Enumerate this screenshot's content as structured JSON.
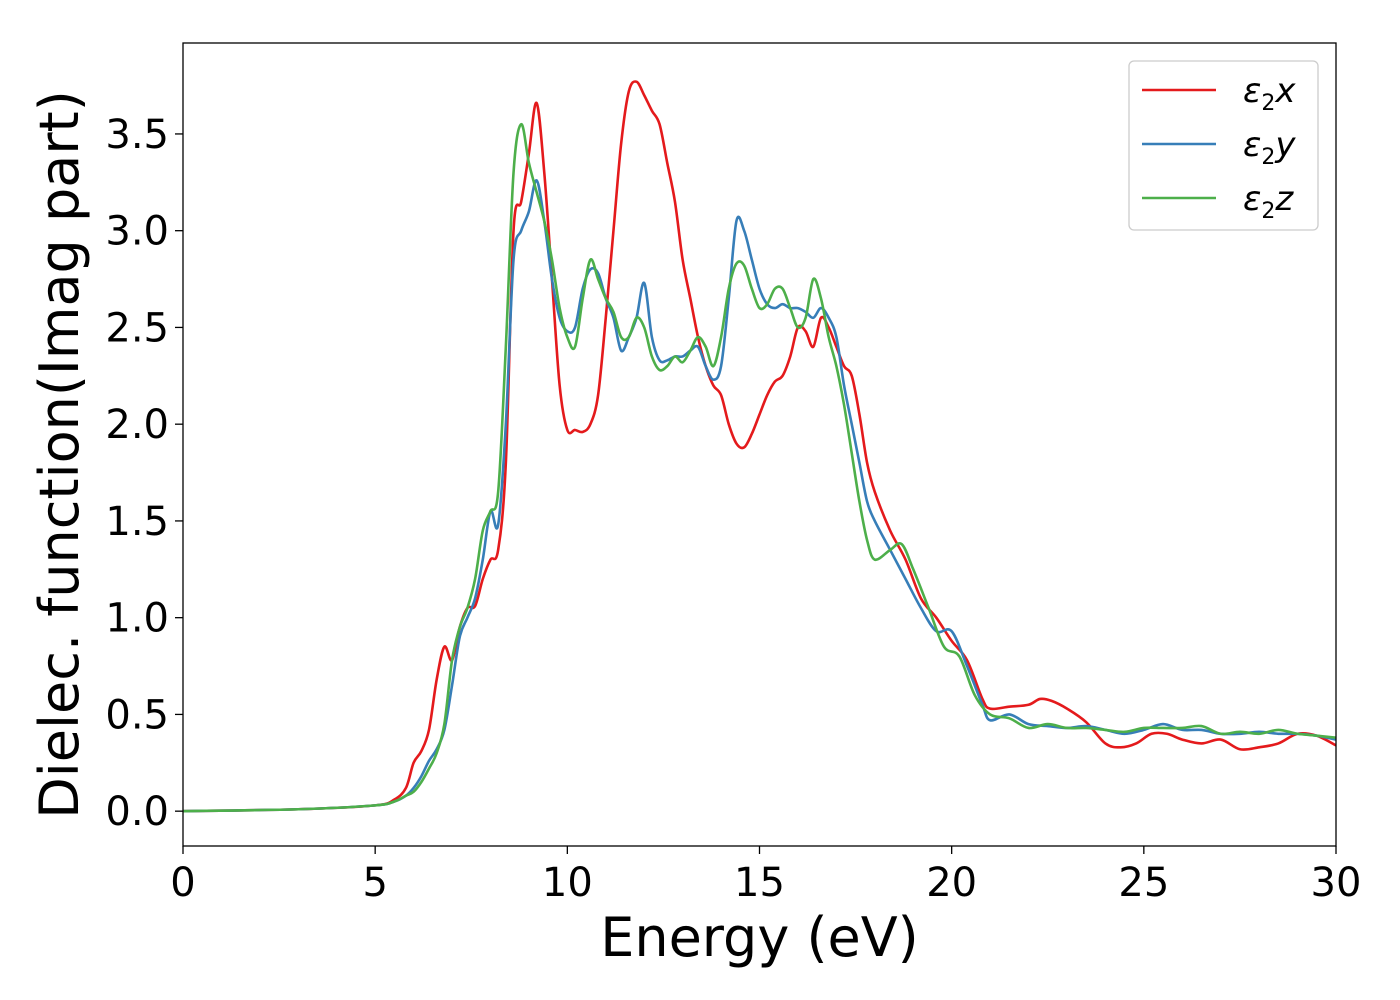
{
  "chart_data": {
    "type": "line",
    "xlabel": "Energy (eV)",
    "ylabel": "Dielec. function(Imag part)",
    "xlim": [
      0,
      30
    ],
    "ylim": [
      -0.18,
      3.97
    ],
    "xticks": [
      0,
      5,
      10,
      15,
      20,
      25,
      30
    ],
    "xtick_labels": [
      "0",
      "5",
      "10",
      "15",
      "20",
      "25",
      "30"
    ],
    "yticks": [
      0.0,
      0.5,
      1.0,
      1.5,
      2.0,
      2.5,
      3.0,
      3.5
    ],
    "ytick_labels": [
      "0.0",
      "0.5",
      "1.0",
      "1.5",
      "2.0",
      "2.5",
      "3.0",
      "3.5"
    ],
    "grid": false,
    "legend_position": "top-right",
    "series": [
      {
        "name": "ε₂x",
        "legend": {
          "symbol": "ε",
          "sub": "2",
          "suffix": "x"
        },
        "color": "#e41a1c",
        "x": [
          0,
          3,
          5,
          5.5,
          5.8,
          6.0,
          6.2,
          6.4,
          6.6,
          6.8,
          7.0,
          7.2,
          7.4,
          7.6,
          7.8,
          8.0,
          8.2,
          8.4,
          8.6,
          8.8,
          9.0,
          9.2,
          9.4,
          9.6,
          9.8,
          10.0,
          10.2,
          10.4,
          10.6,
          10.8,
          11.0,
          11.2,
          11.4,
          11.6,
          11.8,
          12.0,
          12.2,
          12.4,
          12.6,
          12.8,
          13.0,
          13.2,
          13.4,
          13.6,
          13.8,
          14.0,
          14.2,
          14.4,
          14.6,
          14.8,
          15.0,
          15.2,
          15.4,
          15.6,
          15.8,
          16.0,
          16.2,
          16.4,
          16.6,
          16.8,
          17.0,
          17.2,
          17.4,
          17.6,
          17.8,
          18.0,
          18.4,
          18.8,
          19.2,
          19.6,
          20.0,
          20.4,
          20.8,
          21.0,
          21.5,
          22.0,
          22.3,
          22.6,
          23.0,
          23.5,
          24.0,
          24.4,
          24.8,
          25.2,
          25.6,
          26.0,
          26.5,
          27.0,
          27.5,
          28.0,
          28.5,
          29.0,
          29.5,
          30.0
        ],
        "y": [
          0.0,
          0.01,
          0.03,
          0.06,
          0.12,
          0.25,
          0.31,
          0.42,
          0.68,
          0.85,
          0.78,
          0.95,
          1.05,
          1.06,
          1.2,
          1.3,
          1.35,
          1.8,
          3.0,
          3.15,
          3.4,
          3.66,
          3.3,
          2.75,
          2.2,
          1.97,
          1.97,
          1.96,
          2.0,
          2.15,
          2.55,
          3.0,
          3.45,
          3.72,
          3.77,
          3.7,
          3.62,
          3.55,
          3.35,
          3.15,
          2.85,
          2.65,
          2.45,
          2.3,
          2.2,
          2.15,
          2.0,
          1.9,
          1.88,
          1.95,
          2.05,
          2.15,
          2.22,
          2.25,
          2.35,
          2.5,
          2.48,
          2.4,
          2.55,
          2.5,
          2.4,
          2.3,
          2.25,
          2.05,
          1.8,
          1.65,
          1.45,
          1.3,
          1.1,
          1.0,
          0.88,
          0.78,
          0.58,
          0.53,
          0.54,
          0.55,
          0.58,
          0.57,
          0.53,
          0.46,
          0.35,
          0.33,
          0.35,
          0.4,
          0.4,
          0.37,
          0.35,
          0.37,
          0.32,
          0.33,
          0.35,
          0.4,
          0.39,
          0.34
        ]
      },
      {
        "name": "ε₂y",
        "legend": {
          "symbol": "ε",
          "sub": "2",
          "suffix": "y"
        },
        "color": "#377eb8",
        "x": [
          0,
          3,
          5,
          5.5,
          5.8,
          6.0,
          6.2,
          6.4,
          6.6,
          6.8,
          7.0,
          7.2,
          7.4,
          7.6,
          7.8,
          8.0,
          8.2,
          8.4,
          8.6,
          8.8,
          9.0,
          9.2,
          9.4,
          9.6,
          9.8,
          10.0,
          10.2,
          10.4,
          10.6,
          10.8,
          11.0,
          11.2,
          11.4,
          11.6,
          11.8,
          12.0,
          12.2,
          12.4,
          12.6,
          12.8,
          13.0,
          13.2,
          13.4,
          13.6,
          13.8,
          14.0,
          14.2,
          14.4,
          14.6,
          14.8,
          15.0,
          15.2,
          15.4,
          15.6,
          15.8,
          16.0,
          16.2,
          16.4,
          16.6,
          16.8,
          17.0,
          17.2,
          17.4,
          17.6,
          17.8,
          18.0,
          18.4,
          18.8,
          19.2,
          19.6,
          20.0,
          20.4,
          20.8,
          21.0,
          21.5,
          22.0,
          22.5,
          23.0,
          23.5,
          24.0,
          24.5,
          25.0,
          25.5,
          26.0,
          26.5,
          27.0,
          27.5,
          28.0,
          28.5,
          29.0,
          29.5,
          30.0
        ],
        "y": [
          0.0,
          0.01,
          0.03,
          0.05,
          0.08,
          0.12,
          0.18,
          0.26,
          0.32,
          0.42,
          0.65,
          0.9,
          1.0,
          1.1,
          1.3,
          1.55,
          1.48,
          2.0,
          2.85,
          3.0,
          3.1,
          3.26,
          3.05,
          2.75,
          2.55,
          2.48,
          2.5,
          2.7,
          2.8,
          2.78,
          2.65,
          2.55,
          2.38,
          2.45,
          2.55,
          2.73,
          2.45,
          2.33,
          2.33,
          2.35,
          2.35,
          2.38,
          2.4,
          2.3,
          2.23,
          2.3,
          2.65,
          3.05,
          3.0,
          2.85,
          2.7,
          2.62,
          2.6,
          2.62,
          2.6,
          2.6,
          2.58,
          2.55,
          2.6,
          2.55,
          2.45,
          2.2,
          2.0,
          1.8,
          1.6,
          1.5,
          1.35,
          1.2,
          1.05,
          0.93,
          0.93,
          0.75,
          0.55,
          0.47,
          0.5,
          0.45,
          0.44,
          0.43,
          0.44,
          0.42,
          0.4,
          0.42,
          0.45,
          0.42,
          0.42,
          0.4,
          0.4,
          0.41,
          0.4,
          0.4,
          0.39,
          0.37
        ]
      },
      {
        "name": "ε₂z",
        "legend": {
          "symbol": "ε",
          "sub": "2",
          "suffix": "z"
        },
        "color": "#4daf4a",
        "x": [
          0,
          3,
          5,
          5.5,
          5.8,
          6.0,
          6.2,
          6.4,
          6.6,
          6.8,
          7.0,
          7.2,
          7.4,
          7.6,
          7.8,
          8.0,
          8.2,
          8.4,
          8.6,
          8.8,
          9.0,
          9.2,
          9.4,
          9.6,
          9.8,
          10.0,
          10.2,
          10.4,
          10.6,
          10.8,
          11.0,
          11.2,
          11.4,
          11.6,
          11.8,
          12.0,
          12.2,
          12.4,
          12.6,
          12.8,
          13.0,
          13.2,
          13.4,
          13.6,
          13.8,
          14.0,
          14.2,
          14.4,
          14.6,
          14.8,
          15.0,
          15.2,
          15.4,
          15.6,
          15.8,
          16.0,
          16.2,
          16.4,
          16.6,
          16.8,
          17.0,
          17.2,
          17.4,
          17.6,
          17.8,
          18.0,
          18.4,
          18.7,
          19.0,
          19.4,
          19.8,
          20.2,
          20.6,
          21.0,
          21.5,
          22.0,
          22.5,
          23.0,
          23.5,
          24.0,
          24.5,
          25.0,
          25.5,
          26.0,
          26.5,
          27.0,
          27.5,
          28.0,
          28.5,
          29.0,
          29.5,
          30.0
        ],
        "y": [
          0.0,
          0.01,
          0.03,
          0.05,
          0.08,
          0.1,
          0.15,
          0.22,
          0.3,
          0.45,
          0.78,
          0.95,
          1.05,
          1.2,
          1.45,
          1.55,
          1.65,
          2.4,
          3.3,
          3.55,
          3.35,
          3.2,
          3.05,
          2.85,
          2.6,
          2.45,
          2.4,
          2.65,
          2.85,
          2.75,
          2.65,
          2.58,
          2.45,
          2.45,
          2.55,
          2.5,
          2.35,
          2.28,
          2.3,
          2.35,
          2.32,
          2.38,
          2.45,
          2.4,
          2.3,
          2.45,
          2.7,
          2.83,
          2.82,
          2.7,
          2.6,
          2.62,
          2.7,
          2.7,
          2.6,
          2.5,
          2.55,
          2.75,
          2.65,
          2.45,
          2.3,
          2.1,
          1.85,
          1.6,
          1.4,
          1.3,
          1.35,
          1.38,
          1.25,
          1.05,
          0.85,
          0.8,
          0.6,
          0.5,
          0.48,
          0.43,
          0.45,
          0.43,
          0.43,
          0.42,
          0.41,
          0.43,
          0.43,
          0.43,
          0.44,
          0.4,
          0.41,
          0.4,
          0.42,
          0.4,
          0.39,
          0.38
        ]
      }
    ]
  }
}
